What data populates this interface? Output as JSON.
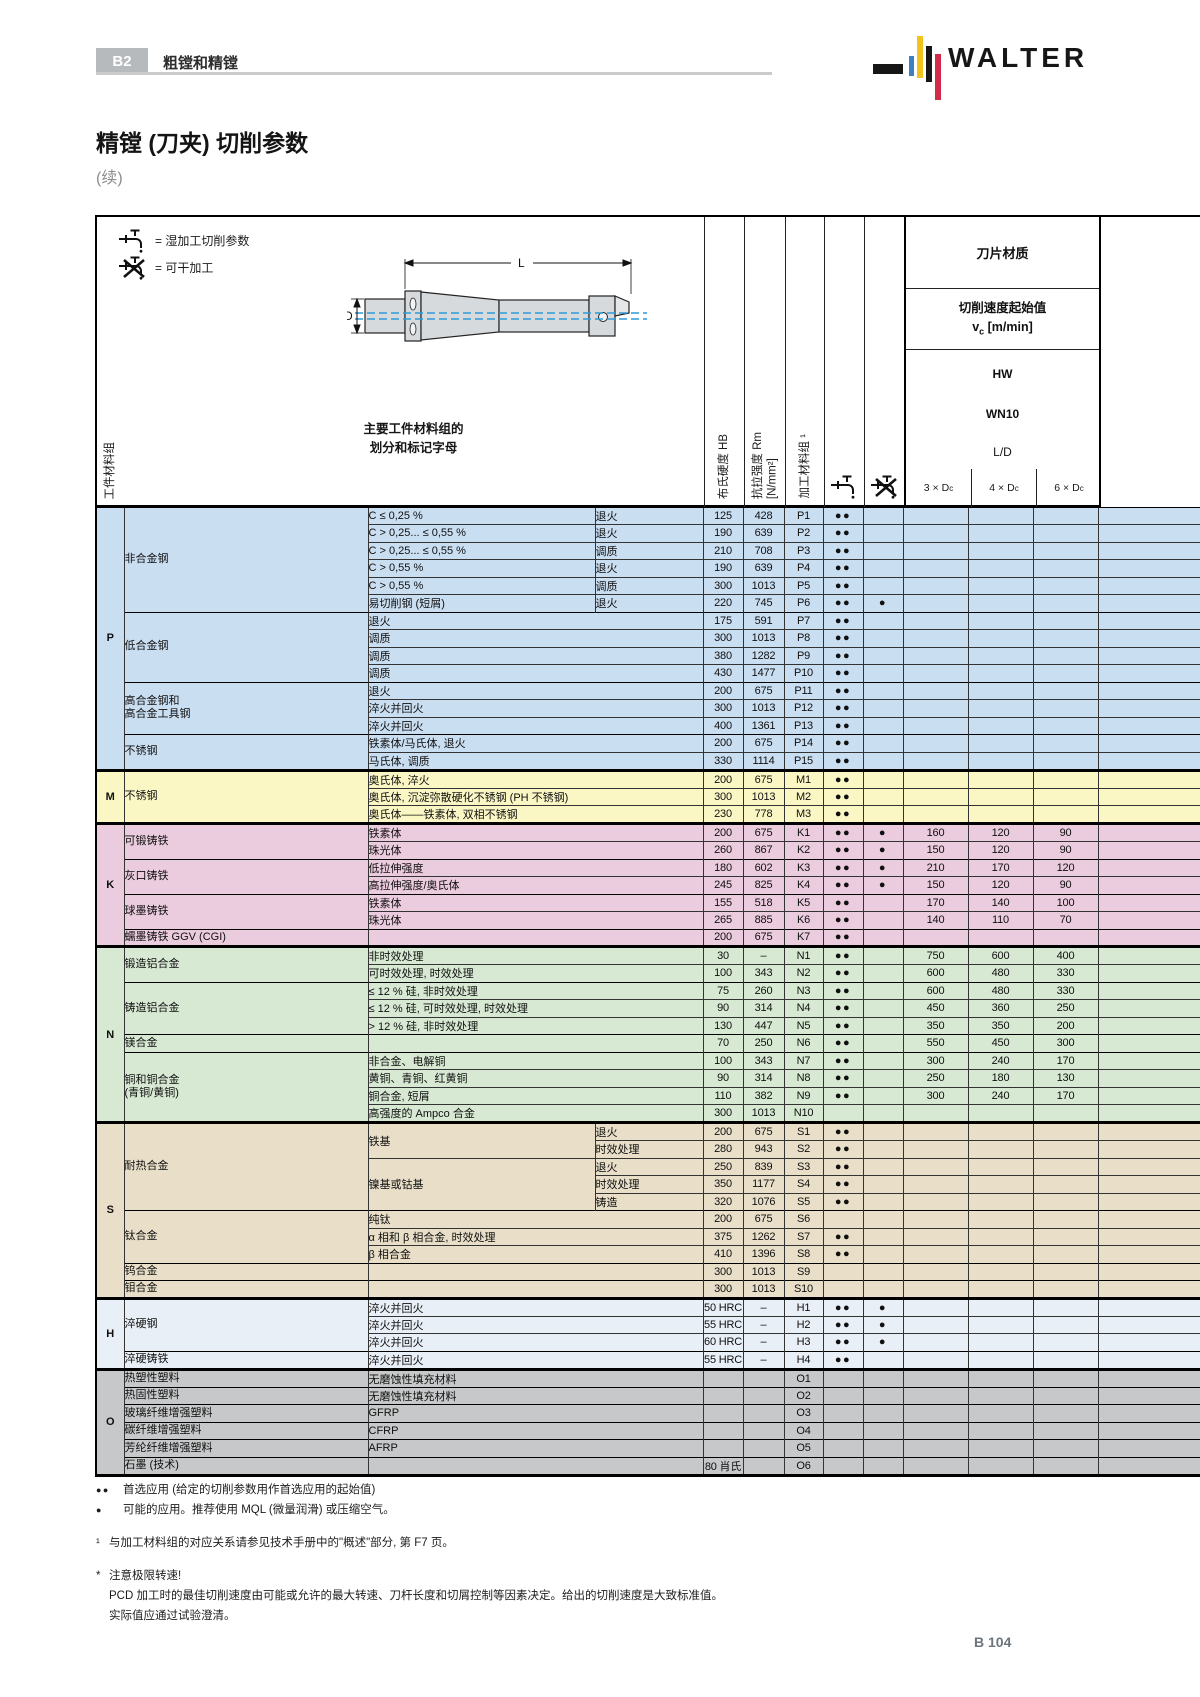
{
  "page": {
    "badge": "B2",
    "chapter": "粗镗和精镗",
    "brand": "WALTER",
    "title": "精镗 (刀夹) 切削参数",
    "subtitle": "(续)",
    "page_number": "B 104"
  },
  "legend": {
    "wet": "= 湿加工切削参数",
    "dry": "= 可干加工"
  },
  "header": {
    "workpiece_group": "工件材料组",
    "main_col_line1": "主要工件材料组的",
    "main_col_line2": "划分和标记字母",
    "col_hb": "布氏硬度 HB",
    "col_rm": "抗拉强度 Rm\n[N/mm²]",
    "col_mat": "加工材料组 ¹",
    "insert_material": "刀片材质",
    "vc_title": "切削速度起始值",
    "vc_pre": "v",
    "vc_sub": "c",
    "vc_unit": " [m/min]",
    "grade_hw": "HW",
    "grade_wn10": "WN10",
    "ld_label": "L/D",
    "dc_cols": [
      "3 × D",
      "4 × D",
      "6 × D"
    ],
    "dc_sub": "c",
    "diagram_d": "D",
    "diagram_l": "L"
  },
  "table": {
    "sections": [
      {
        "letter": "P",
        "color": "#cadef2",
        "groups": [
          {
            "name": "非合金钢",
            "rows": [
              {
                "sub": "C ≤ 0,25 %",
                "treat": "退火",
                "hb": "125",
                "rm": "428",
                "mg": "P1",
                "wet": "●●"
              },
              {
                "sub": "C > 0,25... ≤ 0,55 %",
                "treat": "退火",
                "hb": "190",
                "rm": "639",
                "mg": "P2",
                "wet": "●●"
              },
              {
                "sub": "C > 0,25... ≤ 0,55 %",
                "treat": "调质",
                "hb": "210",
                "rm": "708",
                "mg": "P3",
                "wet": "●●"
              },
              {
                "sub": "C > 0,55 %",
                "treat": "退火",
                "hb": "190",
                "rm": "639",
                "mg": "P4",
                "wet": "●●"
              },
              {
                "sub": "C > 0,55 %",
                "treat": "调质",
                "hb": "300",
                "rm": "1013",
                "mg": "P5",
                "wet": "●●"
              },
              {
                "sub": "易切削钢 (短屑)",
                "treat": "退火",
                "hb": "220",
                "rm": "745",
                "mg": "P6",
                "wet": "●●",
                "dry": "●"
              }
            ]
          },
          {
            "name": "低合金钢",
            "rows": [
              {
                "sub": "退火",
                "hb": "175",
                "rm": "591",
                "mg": "P7",
                "wet": "●●"
              },
              {
                "sub": "调质",
                "hb": "300",
                "rm": "1013",
                "mg": "P8",
                "wet": "●●"
              },
              {
                "sub": "调质",
                "hb": "380",
                "rm": "1282",
                "mg": "P9",
                "wet": "●●"
              },
              {
                "sub": "调质",
                "hb": "430",
                "rm": "1477",
                "mg": "P10",
                "wet": "●●"
              }
            ]
          },
          {
            "name": "高合金钢和\n高合金工具钢",
            "rows": [
              {
                "sub": "退火",
                "hb": "200",
                "rm": "675",
                "mg": "P11",
                "wet": "●●"
              },
              {
                "sub": "淬火并回火",
                "hb": "300",
                "rm": "1013",
                "mg": "P12",
                "wet": "●●"
              },
              {
                "sub": "淬火并回火",
                "hb": "400",
                "rm": "1361",
                "mg": "P13",
                "wet": "●●"
              }
            ]
          },
          {
            "name": "不锈钢",
            "rows": [
              {
                "sub": "铁素体/马氏体, 退火",
                "hb": "200",
                "rm": "675",
                "mg": "P14",
                "wet": "●●"
              },
              {
                "sub": "马氏体, 调质",
                "hb": "330",
                "rm": "1114",
                "mg": "P15",
                "wet": "●●"
              }
            ]
          }
        ]
      },
      {
        "letter": "M",
        "color": "#fbf7c5",
        "groups": [
          {
            "name": "不锈钢",
            "rows": [
              {
                "sub": "奥氏体, 淬火",
                "hb": "200",
                "rm": "675",
                "mg": "M1",
                "wet": "●●"
              },
              {
                "sub": "奥氏体, 沉淀弥散硬化不锈钢 (PH 不锈钢)",
                "hb": "300",
                "rm": "1013",
                "mg": "M2",
                "wet": "●●"
              },
              {
                "sub": "奥氏体——铁素体, 双相不锈钢",
                "hb": "230",
                "rm": "778",
                "mg": "M3",
                "wet": "●●"
              }
            ]
          }
        ]
      },
      {
        "letter": "K",
        "color": "#ebcbde",
        "groups": [
          {
            "name": "可锻铸铁",
            "rows": [
              {
                "sub": "铁素体",
                "hb": "200",
                "rm": "675",
                "mg": "K1",
                "wet": "●●",
                "dry": "●",
                "v": [
                  "160",
                  "120",
                  "90"
                ]
              },
              {
                "sub": "珠光体",
                "hb": "260",
                "rm": "867",
                "mg": "K2",
                "wet": "●●",
                "dry": "●",
                "v": [
                  "150",
                  "120",
                  "90"
                ]
              }
            ]
          },
          {
            "name": "灰口铸铁",
            "rows": [
              {
                "sub": "低拉伸强度",
                "hb": "180",
                "rm": "602",
                "mg": "K3",
                "wet": "●●",
                "dry": "●",
                "v": [
                  "210",
                  "170",
                  "120"
                ]
              },
              {
                "sub": "高拉伸强度/奥氏体",
                "hb": "245",
                "rm": "825",
                "mg": "K4",
                "wet": "●●",
                "dry": "●",
                "v": [
                  "150",
                  "120",
                  "90"
                ]
              }
            ]
          },
          {
            "name": "球墨铸铁",
            "rows": [
              {
                "sub": "铁素体",
                "hb": "155",
                "rm": "518",
                "mg": "K5",
                "wet": "●●",
                "v": [
                  "170",
                  "140",
                  "100"
                ]
              },
              {
                "sub": "珠光体",
                "hb": "265",
                "rm": "885",
                "mg": "K6",
                "wet": "●●",
                "v": [
                  "140",
                  "110",
                  "70"
                ]
              }
            ]
          },
          {
            "name": "蠕墨铸铁 GGV (CGI)",
            "rows": [
              {
                "sub": "",
                "hb": "200",
                "rm": "675",
                "mg": "K7",
                "wet": "●●"
              }
            ]
          }
        ]
      },
      {
        "letter": "N",
        "color": "#d7e9d3",
        "groups": [
          {
            "name": "锻造铝合金",
            "rows": [
              {
                "sub": "非时效处理",
                "hb": "30",
                "rm": "–",
                "mg": "N1",
                "wet": "●●",
                "v": [
                  "750",
                  "600",
                  "400"
                ]
              },
              {
                "sub": "可时效处理, 时效处理",
                "hb": "100",
                "rm": "343",
                "mg": "N2",
                "wet": "●●",
                "v": [
                  "600",
                  "480",
                  "330"
                ]
              }
            ]
          },
          {
            "name": "铸造铝合金",
            "rows": [
              {
                "sub": "≤ 12 % 硅, 非时效处理",
                "hb": "75",
                "rm": "260",
                "mg": "N3",
                "wet": "●●",
                "v": [
                  "600",
                  "480",
                  "330"
                ]
              },
              {
                "sub": "≤ 12 % 硅, 可时效处理, 时效处理",
                "hb": "90",
                "rm": "314",
                "mg": "N4",
                "wet": "●●",
                "v": [
                  "450",
                  "360",
                  "250"
                ]
              },
              {
                "sub": "> 12 % 硅, 非时效处理",
                "hb": "130",
                "rm": "447",
                "mg": "N5",
                "wet": "●●",
                "v": [
                  "350",
                  "350",
                  "200"
                ]
              }
            ]
          },
          {
            "name": "镁合金",
            "rows": [
              {
                "sub": "",
                "hb": "70",
                "rm": "250",
                "mg": "N6",
                "wet": "●●",
                "v": [
                  "550",
                  "450",
                  "300"
                ]
              }
            ]
          },
          {
            "name": "铜和铜合金\n(青铜/黄铜)",
            "rows": [
              {
                "sub": "非合金、电解铜",
                "hb": "100",
                "rm": "343",
                "mg": "N7",
                "wet": "●●",
                "v": [
                  "300",
                  "240",
                  "170"
                ]
              },
              {
                "sub": "黄铜、青铜、红黄铜",
                "hb": "90",
                "rm": "314",
                "mg": "N8",
                "wet": "●●",
                "v": [
                  "250",
                  "180",
                  "130"
                ]
              },
              {
                "sub": "铜合金, 短屑",
                "hb": "110",
                "rm": "382",
                "mg": "N9",
                "wet": "●●",
                "v": [
                  "300",
                  "240",
                  "170"
                ]
              },
              {
                "sub": "高强度的 Ampco 合金",
                "hb": "300",
                "rm": "1013",
                "mg": "N10"
              }
            ]
          }
        ]
      },
      {
        "letter": "S",
        "color": "#e9dfc9",
        "groups": [
          {
            "name": "耐热合金",
            "rows": [
              {
                "sub": "铁基",
                "subspan": 2,
                "treat": "退火",
                "hb": "200",
                "rm": "675",
                "mg": "S1",
                "wet": "●●"
              },
              {
                "treat": "时效处理",
                "hb": "280",
                "rm": "943",
                "mg": "S2",
                "wet": "●●"
              },
              {
                "sub": "镍基或钴基",
                "subspan": 3,
                "treat": "退火",
                "hb": "250",
                "rm": "839",
                "mg": "S3",
                "wet": "●●"
              },
              {
                "treat": "时效处理",
                "hb": "350",
                "rm": "1177",
                "mg": "S4",
                "wet": "●●"
              },
              {
                "treat": "铸造",
                "hb": "320",
                "rm": "1076",
                "mg": "S5",
                "wet": "●●"
              }
            ]
          },
          {
            "name": "钛合金",
            "rows": [
              {
                "sub": "纯钛",
                "hb": "200",
                "rm": "675",
                "mg": "S6"
              },
              {
                "sub": "α 相和 β 相合金, 时效处理",
                "hb": "375",
                "rm": "1262",
                "mg": "S7",
                "wet": "●●"
              },
              {
                "sub": "β 相合金",
                "hb": "410",
                "rm": "1396",
                "mg": "S8",
                "wet": "●●"
              }
            ]
          },
          {
            "name": "钨合金",
            "rows": [
              {
                "sub": "",
                "hb": "300",
                "rm": "1013",
                "mg": "S9"
              }
            ]
          },
          {
            "name": "钼合金",
            "rows": [
              {
                "sub": "",
                "hb": "300",
                "rm": "1013",
                "mg": "S10"
              }
            ]
          }
        ]
      },
      {
        "letter": "H",
        "color": "#e9eff7",
        "groups": [
          {
            "name": "淬硬钢",
            "rows": [
              {
                "sub": "淬火并回火",
                "hb": "50 HRC",
                "rm": "–",
                "mg": "H1",
                "wet": "●●",
                "dry": "●"
              },
              {
                "sub": "淬火并回火",
                "hb": "55 HRC",
                "rm": "–",
                "mg": "H2",
                "wet": "●●",
                "dry": "●"
              },
              {
                "sub": "淬火并回火",
                "hb": "60 HRC",
                "rm": "–",
                "mg": "H3",
                "wet": "●●",
                "dry": "●"
              }
            ]
          },
          {
            "name": "淬硬铸铁",
            "rows": [
              {
                "sub": "淬火并回火",
                "hb": "55 HRC",
                "rm": "–",
                "mg": "H4",
                "wet": "●●"
              }
            ]
          }
        ]
      },
      {
        "letter": "O",
        "color": "#c7c8c9",
        "groups": [
          {
            "name": "热塑性塑料",
            "rows": [
              {
                "sub": "无磨蚀性填充材料",
                "mg": "O1"
              }
            ]
          },
          {
            "name": "热固性塑料",
            "rows": [
              {
                "sub": "无磨蚀性填充材料",
                "mg": "O2"
              }
            ]
          },
          {
            "name": "玻璃纤维增强塑料",
            "rows": [
              {
                "sub": "GFRP",
                "mg": "O3"
              }
            ]
          },
          {
            "name": "碳纤维增强塑料",
            "rows": [
              {
                "sub": "CFRP",
                "mg": "O4"
              }
            ]
          },
          {
            "name": "芳纶纤维增强塑料",
            "rows": [
              {
                "sub": "AFRP",
                "mg": "O5"
              }
            ]
          },
          {
            "name": "石墨 (技术)",
            "rows": [
              {
                "sub": "",
                "hb": "80 肖氏",
                "mg": "O6"
              }
            ]
          }
        ]
      }
    ]
  },
  "footnotes": [
    {
      "marker": "●●",
      "text": "首选应用 (给定的切削参数用作首选应用的起始值)"
    },
    {
      "marker": "●",
      "text": "可能的应用。推荐使用 MQL (微量润滑) 或压缩空气。"
    },
    {
      "marker": "¹",
      "text": "与加工材料组的对应关系请参见技术手册中的\"概述\"部分, 第 F7 页。"
    },
    {
      "marker": "*",
      "text": "注意极限转速!"
    },
    {
      "marker": "",
      "text": "PCD 加工时的最佳切削速度由可能或允许的最大转速、刀杆长度和切屑控制等因素决定。给出的切削速度是大致标准值。"
    },
    {
      "marker": "",
      "text": "实际值应通过试验澄清。"
    }
  ]
}
